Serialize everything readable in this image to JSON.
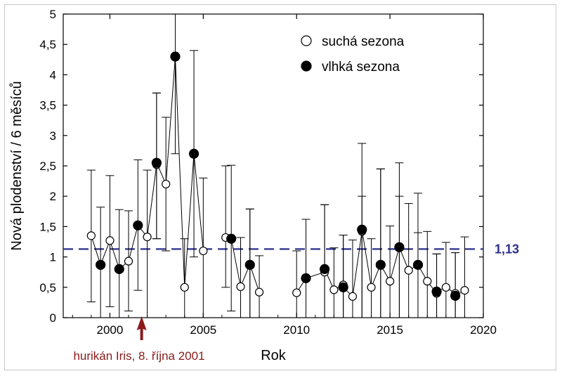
{
  "chart_data": {
    "type": "scatter",
    "xlabel": "Rok",
    "ylabel": "Nová plodenství / 6 měsíců",
    "xlim": [
      1997.5,
      2020
    ],
    "ylim": [
      0,
      5
    ],
    "xticks": [
      2000,
      2005,
      2010,
      2015,
      2020
    ],
    "xtick_labels": [
      "2000",
      "2005",
      "2010",
      "2015",
      "2020"
    ],
    "yticks": [
      0,
      0.5,
      1,
      1.5,
      2,
      2.5,
      3,
      3.5,
      4,
      4.5,
      5
    ],
    "ytick_labels": [
      "0",
      "0,5",
      "1",
      "1,5",
      "2",
      "2,5",
      "3",
      "3,5",
      "4",
      "4,5",
      "5"
    ],
    "grid": false,
    "legend_position": "top-right",
    "connecting_line": true,
    "series": [
      {
        "name": "suchá sezona",
        "marker": "open-circle",
        "points": [
          {
            "x": 1999.0,
            "y": 1.35,
            "low": 0.26,
            "high": 2.43
          },
          {
            "x": 2000.0,
            "y": 1.27,
            "low": 0.18,
            "high": 2.34
          },
          {
            "x": 2001.0,
            "y": 0.93,
            "low": 0.11,
            "high": 1.76
          },
          {
            "x": 2002.0,
            "y": 1.33,
            "low": 0.0,
            "high": 2.43
          },
          {
            "x": 2002.5,
            "y": 2.52,
            "low": 1.3,
            "high": 3.7
          },
          {
            "x": 2003.0,
            "y": 2.2,
            "low": 1.1,
            "high": 3.3
          },
          {
            "x": 2004.0,
            "y": 0.5,
            "low": 0.0,
            "high": 1.3
          },
          {
            "x": 2005.0,
            "y": 1.1,
            "low": 0.0,
            "high": 2.3
          },
          {
            "x": 2006.2,
            "y": 1.32,
            "low": 0.5,
            "high": 2.5
          },
          {
            "x": 2007.0,
            "y": 0.51,
            "low": 0.0,
            "high": 1.32
          },
          {
            "x": 2007.5,
            "y": 0.88,
            "low": 0.0,
            "high": 1.79
          },
          {
            "x": 2008.0,
            "y": 0.42,
            "low": 0.0,
            "high": 1.02
          },
          {
            "x": 2010.0,
            "y": 0.41,
            "low": 0.0,
            "high": 1.1
          },
          {
            "x": 2011.5,
            "y": 0.75,
            "low": 0.0,
            "high": 1.86
          },
          {
            "x": 2012.0,
            "y": 0.46,
            "low": 0.0,
            "high": 1.15
          },
          {
            "x": 2012.5,
            "y": 0.54,
            "low": 0.0,
            "high": 1.36
          },
          {
            "x": 2013.0,
            "y": 0.35,
            "low": 0.0,
            "high": 1.28
          },
          {
            "x": 2013.5,
            "y": 1.42,
            "low": 0.0,
            "high": 2.0
          },
          {
            "x": 2014.0,
            "y": 0.5,
            "low": 0.0,
            "high": 1.3
          },
          {
            "x": 2014.5,
            "y": 0.88,
            "low": 0.0,
            "high": 2.45
          },
          {
            "x": 2015.0,
            "y": 0.6,
            "low": 0.0,
            "high": 1.51
          },
          {
            "x": 2015.5,
            "y": 1.16,
            "low": 0.0,
            "high": 2.0
          },
          {
            "x": 2016.0,
            "y": 0.78,
            "low": 0.0,
            "high": 1.88
          },
          {
            "x": 2016.5,
            "y": 0.87,
            "low": 0.0,
            "high": 1.4
          },
          {
            "x": 2017.0,
            "y": 0.6,
            "low": 0.0,
            "high": 1.42
          },
          {
            "x": 2017.5,
            "y": 0.4,
            "low": 0.0,
            "high": 1.05
          },
          {
            "x": 2018.0,
            "y": 0.5,
            "low": 0.0,
            "high": 1.24
          },
          {
            "x": 2018.5,
            "y": 0.4,
            "low": 0.0,
            "high": 1.07
          },
          {
            "x": 2019.0,
            "y": 0.45,
            "low": 0.0,
            "high": 1.33
          }
        ]
      },
      {
        "name": "vlhká sezona",
        "marker": "filled-circle",
        "points": [
          {
            "x": 1999.5,
            "y": 0.87,
            "low": 0.0,
            "high": 1.82
          },
          {
            "x": 2000.5,
            "y": 0.8,
            "low": 0.0,
            "high": 1.78
          },
          {
            "x": 2001.5,
            "y": 1.52,
            "low": 0.45,
            "high": 2.6
          },
          {
            "x": 2002.5,
            "y": 2.55,
            "low": 1.3,
            "high": 3.7
          },
          {
            "x": 2003.5,
            "y": 4.3,
            "low": 2.7,
            "high": 5.0
          },
          {
            "x": 2004.5,
            "y": 2.7,
            "low": 1.0,
            "high": 4.4
          },
          {
            "x": 2006.5,
            "y": 1.3,
            "low": 0.11,
            "high": 2.51
          },
          {
            "x": 2007.5,
            "y": 0.87,
            "low": 0.0,
            "high": 1.79
          },
          {
            "x": 2010.5,
            "y": 0.65,
            "low": 0.0,
            "high": 1.62
          },
          {
            "x": 2011.5,
            "y": 0.8,
            "low": 0.0,
            "high": 1.86
          },
          {
            "x": 2012.5,
            "y": 0.5,
            "low": 0.0,
            "high": 1.36
          },
          {
            "x": 2013.5,
            "y": 1.45,
            "low": 0.0,
            "high": 2.87
          },
          {
            "x": 2014.5,
            "y": 0.87,
            "low": 0.0,
            "high": 2.45
          },
          {
            "x": 2015.5,
            "y": 1.16,
            "low": 0.0,
            "high": 2.55
          },
          {
            "x": 2016.5,
            "y": 0.87,
            "low": 0.0,
            "high": 2.05
          },
          {
            "x": 2017.5,
            "y": 0.43,
            "low": 0.0,
            "high": 1.05
          },
          {
            "x": 2018.5,
            "y": 0.36,
            "low": 0.0,
            "high": 1.07
          }
        ]
      }
    ],
    "reference_line": {
      "y": 1.13,
      "label": "1,13",
      "style": "dashed",
      "color": "#2e2e8c"
    },
    "annotation": {
      "x": 2001.7,
      "text": "hurikán Iris, 8. října 2001",
      "color": "#8b1a1a"
    }
  }
}
